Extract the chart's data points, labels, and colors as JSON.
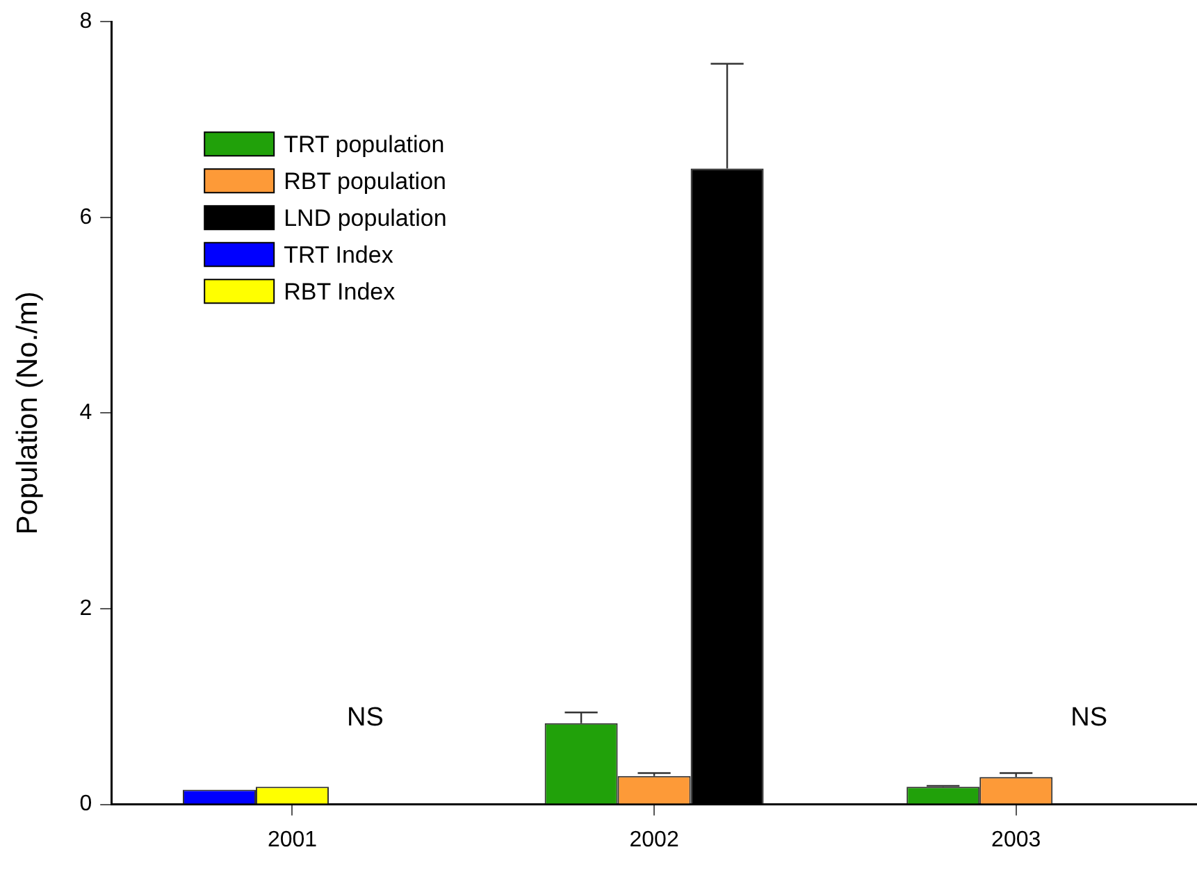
{
  "chart_data": {
    "type": "bar",
    "ylabel": "Population (No./m)",
    "categories": [
      "2001",
      "2002",
      "2003"
    ],
    "series": [
      {
        "name": "TRT population",
        "color": "#21a10a",
        "values": [
          null,
          0.83,
          0.18
        ],
        "errors": [
          null,
          [
            0.83,
            0.94
          ],
          [
            0.18,
            0.19
          ]
        ]
      },
      {
        "name": "RBT population",
        "color": "#fd9a38",
        "values": [
          null,
          0.29,
          0.28
        ],
        "errors": [
          null,
          [
            0.29,
            0.32
          ],
          [
            0.28,
            0.32
          ]
        ]
      },
      {
        "name": "LND population",
        "color": "#000000",
        "values": [
          null,
          6.5,
          null
        ],
        "errors": [
          null,
          [
            6.5,
            7.57
          ],
          null
        ]
      },
      {
        "name": "TRT Index",
        "color": "#0000ff",
        "values": [
          0.15,
          null,
          null
        ]
      },
      {
        "name": "RBT Index",
        "color": "#ffff00",
        "values": [
          0.18,
          null,
          null
        ]
      }
    ],
    "ylim": [
      0,
      8
    ],
    "yticks": [
      0,
      2,
      4,
      6,
      8
    ],
    "grid": false,
    "legend": "top left",
    "annotations": [
      "NS",
      "NS"
    ]
  }
}
